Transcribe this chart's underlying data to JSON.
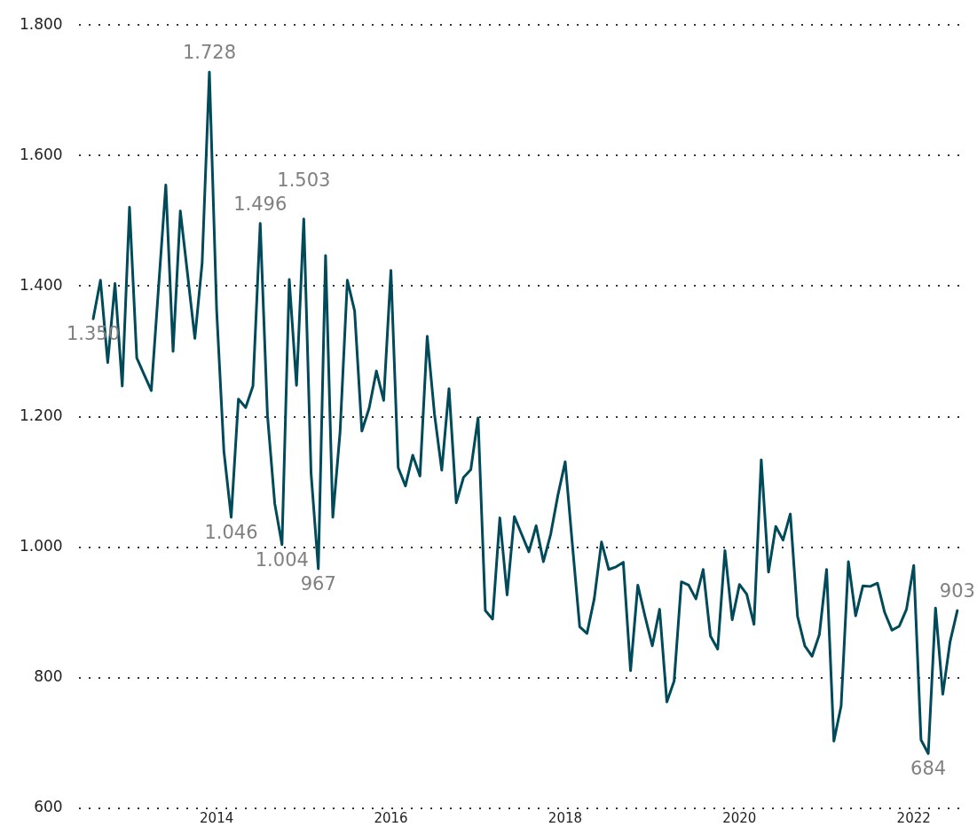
{
  "chart_data": {
    "type": "line",
    "x": [
      "2012-08",
      "2012-09",
      "2012-10",
      "2012-11",
      "2012-12",
      "2013-01",
      "2013-02",
      "2013-03",
      "2013-04",
      "2013-05",
      "2013-06",
      "2013-07",
      "2013-08",
      "2013-09",
      "2013-10",
      "2013-11",
      "2013-12",
      "2014-01",
      "2014-02",
      "2014-03",
      "2014-04",
      "2014-05",
      "2014-06",
      "2014-07",
      "2014-08",
      "2014-09",
      "2014-10",
      "2014-11",
      "2014-12",
      "2015-01",
      "2015-02",
      "2015-03",
      "2015-04",
      "2015-05",
      "2015-06",
      "2015-07",
      "2015-08",
      "2015-09",
      "2015-10",
      "2015-11",
      "2015-12",
      "2016-01",
      "2016-02",
      "2016-03",
      "2016-04",
      "2016-05",
      "2016-06",
      "2016-07",
      "2016-08",
      "2016-09",
      "2016-10",
      "2016-11",
      "2016-12",
      "2017-01",
      "2017-02",
      "2017-03",
      "2017-04",
      "2017-05",
      "2017-06",
      "2017-07",
      "2017-08",
      "2017-09",
      "2017-10",
      "2017-11",
      "2017-12",
      "2018-01",
      "2018-02",
      "2018-03",
      "2018-04",
      "2018-05",
      "2018-06",
      "2018-07",
      "2018-08",
      "2018-09",
      "2018-10",
      "2018-11",
      "2018-12",
      "2019-01",
      "2019-02",
      "2019-03",
      "2019-04",
      "2019-05",
      "2019-06",
      "2019-07",
      "2019-08",
      "2019-09",
      "2019-10",
      "2019-11",
      "2019-12",
      "2020-01",
      "2020-02",
      "2020-03",
      "2020-04",
      "2020-05",
      "2020-06",
      "2020-07",
      "2020-08",
      "2020-09",
      "2020-10",
      "2020-11",
      "2020-12",
      "2021-01",
      "2021-02",
      "2021-03",
      "2021-04",
      "2021-05",
      "2021-06",
      "2021-07",
      "2021-08",
      "2021-09",
      "2021-10",
      "2021-11",
      "2021-12",
      "2022-01",
      "2022-02",
      "2022-03",
      "2022-04",
      "2022-05",
      "2022-06",
      "2022-07"
    ],
    "series": [
      {
        "color": "#004a59",
        "values": [
          1350,
          1409,
          1283,
          1404,
          1247,
          1521,
          1290,
          1265,
          1240,
          1398,
          1555,
          1300,
          1515,
          1418,
          1320,
          1435,
          1728,
          1363,
          1147,
          1046,
          1227,
          1214,
          1247,
          1496,
          1202,
          1067,
          1004,
          1410,
          1248,
          1503,
          1114,
          967,
          1447,
          1046,
          1177,
          1409,
          1362,
          1178,
          1213,
          1270,
          1225,
          1424,
          1122,
          1094,
          1141,
          1109,
          1323,
          1204,
          1118,
          1243,
          1068,
          1107,
          1119,
          1198,
          903,
          890,
          1045,
          927,
          1047,
          1020,
          993,
          1033,
          978,
          1020,
          1080,
          1131,
          1003,
          878,
          868,
          921,
          1008,
          966,
          970,
          977,
          811,
          942,
          894,
          849,
          905,
          763,
          795,
          947,
          942,
          921,
          966,
          864,
          844,
          995,
          889,
          943,
          928,
          882,
          1134,
          962,
          1032,
          1011,
          1051,
          894,
          849,
          833,
          866,
          966,
          703,
          757,
          978,
          895,
          941,
          940,
          945,
          900,
          873,
          879,
          905,
          972,
          705,
          684,
          907,
          775,
          855,
          903
        ],
        "value_labels": [
          "1.350",
          null,
          null,
          null,
          null,
          null,
          null,
          null,
          null,
          null,
          null,
          null,
          null,
          null,
          null,
          null,
          "1.728",
          null,
          null,
          "1.046",
          null,
          null,
          null,
          "1.496",
          null,
          null,
          "1.004",
          null,
          null,
          "1.503",
          null,
          "967",
          null,
          null,
          null,
          null,
          null,
          null,
          null,
          null,
          null,
          null,
          null,
          null,
          null,
          null,
          null,
          null,
          null,
          null,
          null,
          null,
          null,
          null,
          null,
          null,
          null,
          null,
          null,
          null,
          null,
          null,
          null,
          null,
          null,
          null,
          null,
          null,
          null,
          null,
          null,
          null,
          null,
          null,
          null,
          null,
          null,
          null,
          null,
          null,
          null,
          null,
          null,
          null,
          null,
          null,
          null,
          null,
          null,
          null,
          null,
          null,
          null,
          null,
          null,
          null,
          null,
          null,
          null,
          null,
          null,
          null,
          null,
          null,
          null,
          null,
          null,
          null,
          null,
          null,
          null,
          null,
          null,
          null,
          null,
          "684",
          null,
          null,
          null,
          "903"
        ]
      }
    ],
    "xlim": [
      "2012-06",
      "2022-08"
    ],
    "xticks": [
      "2014",
      "2016",
      "2018",
      "2020",
      "2022"
    ],
    "ylim": [
      600,
      1800
    ],
    "yticks": [
      {
        "value": 600,
        "label": "600"
      },
      {
        "value": 800,
        "label": "800"
      },
      {
        "value": 1000,
        "label": "1.000"
      },
      {
        "value": 1200,
        "label": "1.200"
      },
      {
        "value": 1400,
        "label": "1.400"
      },
      {
        "value": 1600,
        "label": "1.600"
      },
      {
        "value": 1800,
        "label": "1.800"
      }
    ],
    "grid": "y",
    "legend": false,
    "marker": "none",
    "line_style": "solid"
  }
}
